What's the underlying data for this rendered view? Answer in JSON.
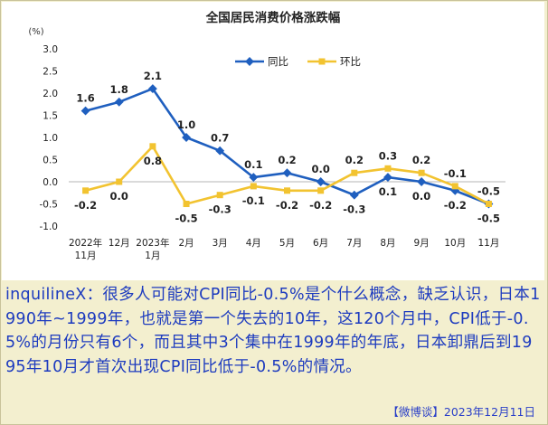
{
  "chart_data": {
    "type": "line",
    "title": "全国居民消费价格涨跌幅",
    "y_unit_label": "(%)",
    "categories": [
      "2022年11月",
      "12月",
      "2023年1月",
      "2月",
      "3月",
      "4月",
      "5月",
      "6月",
      "7月",
      "8月",
      "9月",
      "10月",
      "11月"
    ],
    "category_lines": [
      [
        "2022年",
        "11月"
      ],
      [
        "12月"
      ],
      [
        "2023年",
        "1月"
      ],
      [
        "2月"
      ],
      [
        "3月"
      ],
      [
        "4月"
      ],
      [
        "5月"
      ],
      [
        "6月"
      ],
      [
        "7月"
      ],
      [
        "8月"
      ],
      [
        "9月"
      ],
      [
        "10月"
      ],
      [
        "11月"
      ]
    ],
    "ylim": [
      -1.0,
      3.0
    ],
    "yticks": [
      "3.0",
      "2.5",
      "2.0",
      "1.5",
      "1.0",
      "0.5",
      "0.0",
      "-0.5",
      "-1.0"
    ],
    "legend_position": "top-center",
    "series": [
      {
        "name": "同比",
        "color": "#1f5fbf",
        "values": [
          1.6,
          1.8,
          2.1,
          1.0,
          0.7,
          0.1,
          0.2,
          0.0,
          -0.3,
          0.1,
          0.0,
          -0.2,
          -0.5
        ],
        "labels": [
          "1.6",
          "1.8",
          "2.1",
          "1.0",
          "0.7",
          "0.1",
          "0.2",
          "0.0",
          "-0.3",
          "0.1",
          "0.0",
          "-0.2",
          "-0.5"
        ]
      },
      {
        "name": "环比",
        "color": "#f2c330",
        "values": [
          -0.2,
          0.0,
          0.8,
          -0.5,
          -0.3,
          -0.1,
          -0.2,
          -0.2,
          0.2,
          0.3,
          0.2,
          -0.1,
          -0.5
        ],
        "labels": [
          "-0.2",
          "0.0",
          "0.8",
          "-0.5",
          "-0.3",
          "-0.1",
          "-0.2",
          "-0.2",
          "0.2",
          "0.3",
          "0.2",
          "-0.1",
          "-0.5"
        ]
      }
    ]
  },
  "caption": {
    "text": "inquilineX：很多人可能对CPI同比-0.5%是个什么概念，缺乏认识，日本1990年~1999年，也就是第一个失去的10年，这120个月中，CPI低于-0.5%的月份只有6个，而且其中3个集中在1999年的年底，日本卸鼎后到1995年10月才首次出现CPI同比低于-0.5%的情况。"
  },
  "footer": {
    "text": "【微博谈】2023年12月11日"
  }
}
